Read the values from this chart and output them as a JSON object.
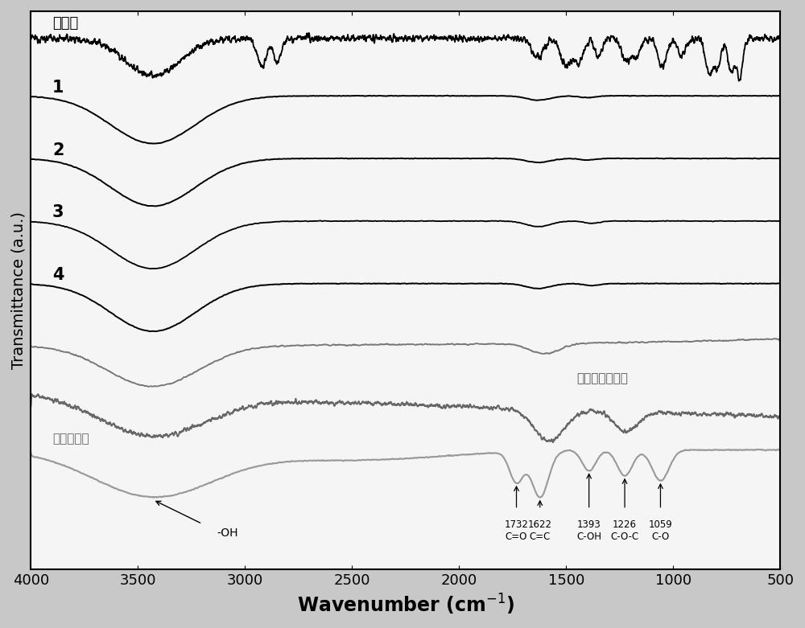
{
  "xlabel": "Wavenumber (cm$^{-1}$)",
  "ylabel": "Transmittance (a.u.)",
  "xlim": [
    4000,
    500
  ],
  "background_color": "#cccccc",
  "curve_labels": [
    "聚合物",
    "1",
    "2",
    "3",
    "4",
    "",
    "还原氧化石墨烯",
    "氧化石墨烯"
  ],
  "curve_colors": [
    "#000000",
    "#000000",
    "#000000",
    "#555555",
    "#000000",
    "#888888",
    "#777777",
    "#999999"
  ],
  "curve_offsets": [
    0.875,
    0.745,
    0.615,
    0.485,
    0.355,
    0.24,
    0.125,
    0.01
  ],
  "xticks": [
    4000,
    3500,
    3000,
    2500,
    2000,
    1500,
    1000,
    500
  ]
}
